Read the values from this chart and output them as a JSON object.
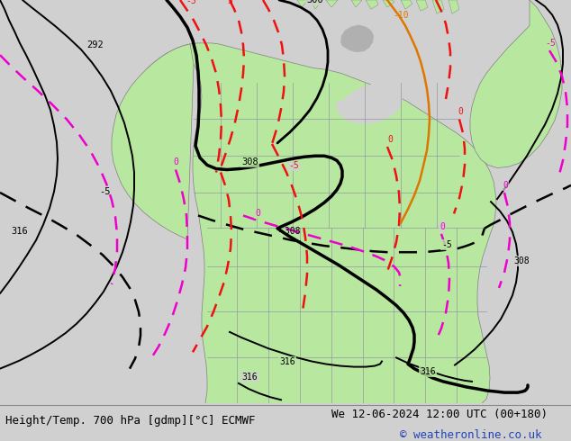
{
  "bottom_left_text": "Height/Temp. 700 hPa [gdmp][°C] ECMWF",
  "bottom_right_text": "We 12-06-2024 12:00 UTC (00+180)",
  "bottom_right_text2": "© weatheronline.co.uk",
  "bg_color": "#d0d0d0",
  "land_green": "#b8e8a0",
  "land_grey": "#b0b0b0",
  "border_color": "#9090a0",
  "font_size_label": 9,
  "font_size_contour": 8,
  "black_lw": 2.0,
  "red_lw": 1.8,
  "mag_lw": 1.8,
  "orange_lw": 1.8,
  "red_color": "#ee1111",
  "mag_color": "#ee00cc",
  "orange_color": "#dd7700"
}
